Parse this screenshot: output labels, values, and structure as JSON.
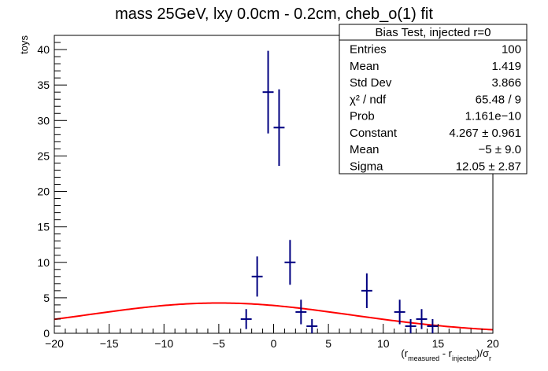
{
  "chart_data": {
    "type": "scatter",
    "title": "mass 25GeV, lxy 0.0cm - 0.2cm, cheb_o(1) fit",
    "xlabel": {
      "open": "(r",
      "sub1": "measured",
      "mid": " - r",
      "sub2": "injected",
      "close": ")/σ",
      "sub3": "r"
    },
    "ylabel": "toys",
    "xlim": [
      -20,
      20
    ],
    "ylim": [
      0,
      42
    ],
    "grid": false,
    "x_ticks": [
      -20,
      -15,
      -10,
      -5,
      0,
      5,
      10,
      15,
      20
    ],
    "x_tick_labels": [
      "−20",
      "−15",
      "−10",
      "−5",
      "0",
      "5",
      "10",
      "15",
      "20"
    ],
    "y_ticks": [
      0,
      5,
      10,
      15,
      20,
      25,
      30,
      35,
      40
    ],
    "y_tick_labels": [
      "0",
      "5",
      "10",
      "15",
      "20",
      "25",
      "30",
      "35",
      "40"
    ],
    "histogram": {
      "color": "#000080",
      "bin_width": 1,
      "points": [
        {
          "x": -2.5,
          "y": 2,
          "err": 1.41
        },
        {
          "x": -1.5,
          "y": 8,
          "err": 2.83
        },
        {
          "x": -0.5,
          "y": 34,
          "err": 5.83
        },
        {
          "x": 0.5,
          "y": 29,
          "err": 5.39
        },
        {
          "x": 1.5,
          "y": 10,
          "err": 3.16
        },
        {
          "x": 2.5,
          "y": 3,
          "err": 1.73
        },
        {
          "x": 3.5,
          "y": 1,
          "err": 1.0
        },
        {
          "x": 8.5,
          "y": 6,
          "err": 2.45
        },
        {
          "x": 11.5,
          "y": 3,
          "err": 1.73
        },
        {
          "x": 12.5,
          "y": 1,
          "err": 1.0
        },
        {
          "x": 13.5,
          "y": 2,
          "err": 1.41
        },
        {
          "x": 14.5,
          "y": 1,
          "err": 1.0
        }
      ]
    },
    "fit": {
      "type": "gaussian",
      "color": "#ff0000",
      "constant": 4.267,
      "mean": -5,
      "sigma": 12.05,
      "range": [
        -20,
        20
      ]
    },
    "stats_box": {
      "title": "Bias Test, injected r=0",
      "placement": "top-right",
      "rows": [
        {
          "label": "Entries",
          "value": "100"
        },
        {
          "label": "Mean",
          "value": "1.419"
        },
        {
          "label": "Std Dev",
          "value": "3.866"
        },
        {
          "label": "χ² / ndf",
          "value": "65.48 / 9"
        },
        {
          "label": "Prob",
          "value": "1.161e−10"
        },
        {
          "label": "Constant",
          "value": "4.267 ± 0.961"
        },
        {
          "label": "Mean",
          "value": "−5 ± 9.0"
        },
        {
          "label": "Sigma",
          "value": "12.05 ± 2.87"
        }
      ]
    }
  }
}
